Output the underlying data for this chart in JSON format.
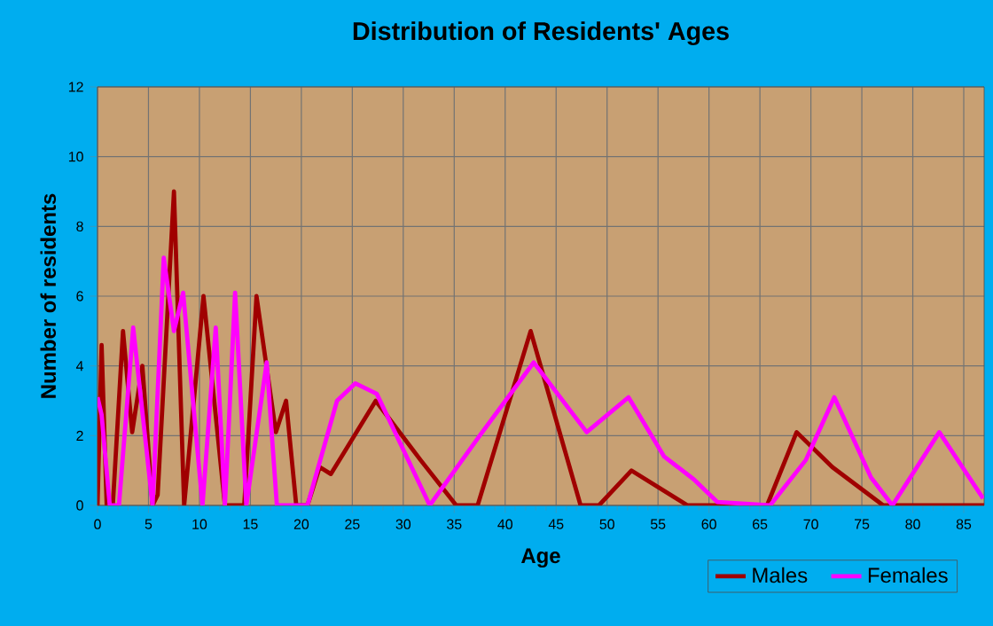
{
  "chart_data": {
    "type": "line",
    "title": "Distribution of Residents' Ages",
    "xlabel": "Age",
    "ylabel": "Number of residents",
    "xlim": [
      0,
      87
    ],
    "ylim": [
      0,
      12
    ],
    "xticks": [
      0,
      5,
      10,
      15,
      20,
      25,
      30,
      35,
      40,
      45,
      50,
      55,
      60,
      65,
      70,
      75,
      80,
      85
    ],
    "yticks": [
      0,
      2,
      4,
      6,
      8,
      10,
      12
    ],
    "grid": true,
    "legend": "bottom right",
    "series": [
      {
        "name": "Males",
        "color": "#a00000",
        "x": [
          0,
          0.4,
          0.9,
          1.5,
          2.5,
          3.4,
          4.4,
          5.4,
          5.9,
          7.5,
          8.5,
          10.4,
          12.5,
          14.4,
          15.6,
          17.5,
          18.5,
          19.5,
          20.6,
          21.8,
          22.9,
          27.3,
          31.7,
          35.2,
          37.3,
          42.5,
          47.4,
          49.2,
          52.4,
          57.9,
          65.7,
          68.6,
          72.1,
          77.1,
          87
        ],
        "values": [
          0,
          4.6,
          0,
          0,
          5,
          2.1,
          4,
          0,
          0.3,
          9,
          0,
          6,
          0,
          0,
          6,
          2.1,
          3,
          0,
          0,
          1.1,
          0.9,
          3,
          1.3,
          0,
          0,
          5,
          0,
          0,
          1,
          0,
          0,
          2.1,
          1.1,
          0,
          0
        ]
      },
      {
        "name": "Females",
        "color": "#ff00ff",
        "x": [
          0,
          0.4,
          1.2,
          2.1,
          3.5,
          5.4,
          6.5,
          7.5,
          8.4,
          10.3,
          11.6,
          12.5,
          13.5,
          14.6,
          16.6,
          17.6,
          20.6,
          23.5,
          25.3,
          27.4,
          32.6,
          37.5,
          42.8,
          48,
          52.1,
          55.6,
          58.5,
          60.8,
          66,
          69.5,
          72.3,
          75.9,
          78,
          82.6,
          86.9
        ],
        "values": [
          3.1,
          2.6,
          0,
          0,
          5.1,
          0,
          7.1,
          5,
          6.1,
          0,
          5.1,
          0,
          6.1,
          0,
          4.1,
          0,
          0,
          3,
          3.5,
          3.2,
          0,
          2,
          4.1,
          2.1,
          3.1,
          1.4,
          0.75,
          0.1,
          0,
          1.3,
          3.1,
          0.8,
          0,
          2.1,
          0.2
        ]
      }
    ]
  }
}
